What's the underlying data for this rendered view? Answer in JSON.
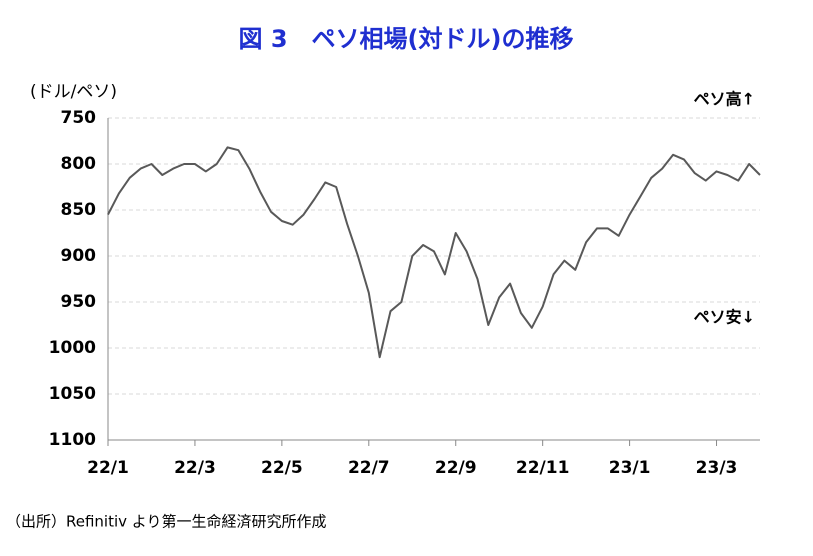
{
  "chart_data": {
    "type": "line",
    "title": "図 3　ペソ相場(対ドル)の推移",
    "y_axis_label": "(ドル/ペソ)",
    "annotations": [
      "ペソ高↑",
      "ペソ安↓"
    ],
    "source": "（出所）Refinitiv より第一生命経済研究所作成",
    "series": [
      {
        "name": "ペソ相場",
        "color": "#595959",
        "values": [
          855,
          832,
          815,
          805,
          800,
          812,
          805,
          800,
          800,
          808,
          800,
          782,
          785,
          805,
          830,
          852,
          862,
          866,
          855,
          838,
          820,
          825,
          865,
          900,
          940,
          1010,
          960,
          950,
          900,
          888,
          895,
          920,
          875,
          895,
          925,
          975,
          945,
          930,
          962,
          978,
          955,
          920,
          905,
          915,
          885,
          870,
          870,
          878,
          855,
          835,
          815,
          805,
          790,
          795,
          810,
          818,
          808,
          812,
          818,
          800,
          812
        ]
      }
    ],
    "xlim": [
      0,
      60
    ],
    "xticks": [
      {
        "value": 0,
        "label": "22/1"
      },
      {
        "value": 8,
        "label": "22/3"
      },
      {
        "value": 16,
        "label": "22/5"
      },
      {
        "value": 24,
        "label": "22/7"
      },
      {
        "value": 32,
        "label": "22/9"
      },
      {
        "value": 40,
        "label": "22/11"
      },
      {
        "value": 48,
        "label": "23/1"
      },
      {
        "value": 56,
        "label": "23/3"
      }
    ],
    "ylim": [
      750,
      1100
    ],
    "y_inverted": true,
    "yticks": [
      750,
      800,
      850,
      900,
      950,
      1000,
      1050,
      1100
    ],
    "grid": true
  }
}
